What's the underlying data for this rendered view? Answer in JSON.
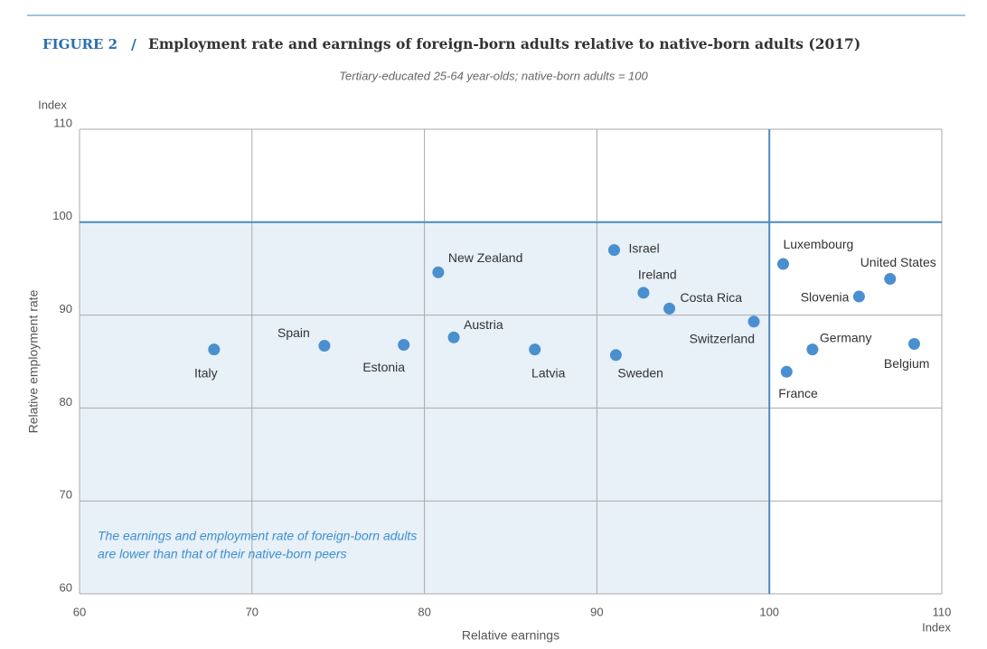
{
  "chart_data": {
    "type": "scatter",
    "figure_label": "FIGURE 2",
    "separator": "/",
    "title": "Employment rate and earnings of foreign-born adults relative to native-born adults (2017)",
    "subtitle": "Tertiary-educated 25-64 year-olds; native-born adults = 100",
    "x_label": "Relative earnings",
    "y_label": "Relative employment rate",
    "x_unit": "Index",
    "y_unit": "Index",
    "labels": [
      "Italy",
      "Spain",
      "Estonia",
      "New Zealand",
      "Austria",
      "Latvia",
      "Israel",
      "Sweden",
      "Ireland",
      "Costa Rica",
      "Switzerland",
      "Luxembourg",
      "France",
      "Germany",
      "Slovenia",
      "United States",
      "Belgium"
    ],
    "x": [
      67.8,
      74.2,
      78.8,
      80.8,
      81.7,
      86.4,
      91.0,
      91.1,
      92.7,
      94.2,
      99.1,
      100.8,
      101.0,
      102.5,
      105.2,
      107.0,
      108.4
    ],
    "values": [
      86.3,
      86.7,
      86.8,
      94.6,
      87.6,
      86.3,
      97.0,
      85.7,
      92.4,
      90.7,
      89.3,
      95.5,
      83.9,
      86.3,
      92.0,
      93.9,
      86.9
    ],
    "color": "#4a8fd0",
    "xlim": [
      60,
      110
    ],
    "xticks": [
      60,
      70,
      80,
      90,
      100,
      110
    ],
    "ylim": [
      60,
      110
    ],
    "yticks": [
      60,
      70,
      80,
      90,
      100,
      110
    ],
    "grid": true,
    "reference_x": 100,
    "reference_y": 100,
    "annotations": [
      "The earnings and employment rate of foreign-born adults",
      "are lower than that of their native-born peers"
    ]
  }
}
